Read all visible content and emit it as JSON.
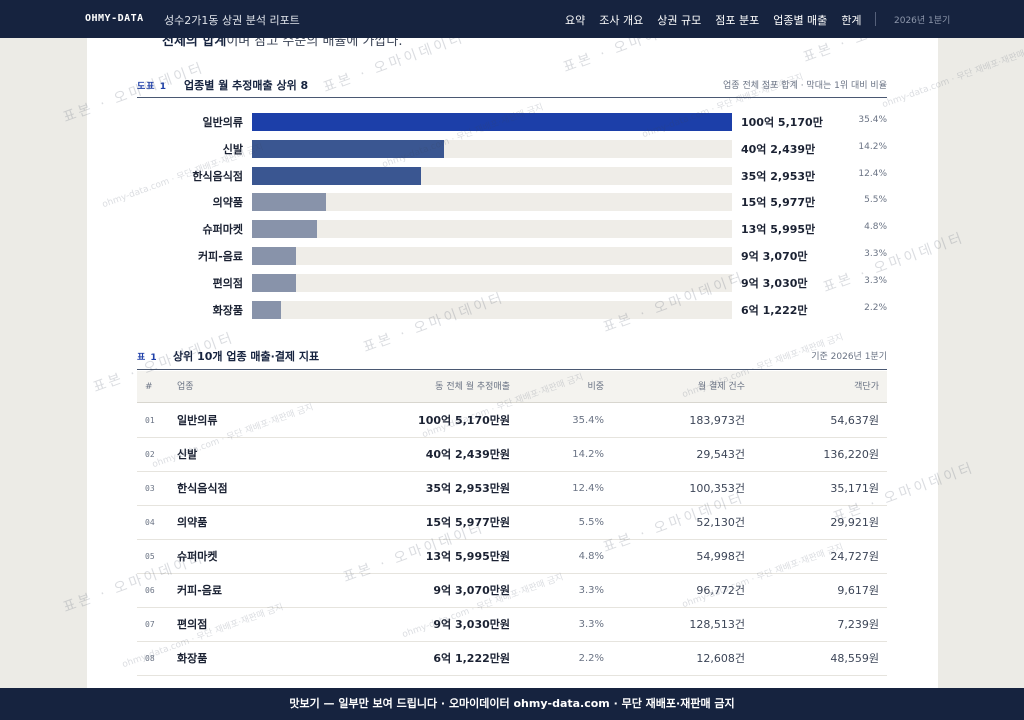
{
  "topbar": {
    "brand": "OHMY-DATA",
    "title": "성수2가1동 상권 분석 리포트",
    "nav": [
      "요약",
      "조사 개요",
      "상권 규모",
      "점포 분포",
      "업종별 매출",
      "한계"
    ],
    "period": "2026년 1분기"
  },
  "lead": {
    "bold": "전체의 합계",
    "rest": "이며 참고 수준의 배율에 가깝다."
  },
  "figure": {
    "tag": "도표 1",
    "title": "업종별 월 추정매출 상위 8",
    "note": "업종 전체 점포 합계 · 막대는 1위 대비 비율"
  },
  "chart_data": {
    "type": "bar",
    "categories": [
      "일반의류",
      "신발",
      "한식음식점",
      "의약품",
      "슈퍼마켓",
      "커피-음료",
      "편의점",
      "화장품"
    ],
    "values": [
      100.517,
      40.2439,
      35.2953,
      15.5977,
      13.5995,
      9.307,
      9.303,
      6.1222
    ],
    "value_labels": [
      "100억 5,170만",
      "40억 2,439만",
      "35억 2,953만",
      "15억 5,977만",
      "13억 5,995만",
      "9억 3,070만",
      "9억 3,030만",
      "6억 1,222만"
    ],
    "shares": [
      "35.4%",
      "14.2%",
      "12.4%",
      "5.5%",
      "4.8%",
      "3.3%",
      "3.3%",
      "2.2%"
    ],
    "colors": [
      "#1c3fa9",
      "#3a5691",
      "#3a5691",
      "#8893aa",
      "#8893aa",
      "#8893aa",
      "#8893aa",
      "#8893aa"
    ]
  },
  "table": {
    "tag": "표 1",
    "title": "상위 10개 업종 매출·결제 지표",
    "note": "기준 2026년 1분기",
    "columns": [
      "#",
      "업종",
      "동 전체 월 추정매출",
      "비중",
      "월 결제 건수",
      "객단가"
    ],
    "rows": [
      {
        "num": "01",
        "name": "일반의류",
        "sales": "100억 5,170만원",
        "share": "35.4%",
        "count": "183,973건",
        "avg": "54,637원"
      },
      {
        "num": "02",
        "name": "신발",
        "sales": "40억 2,439만원",
        "share": "14.2%",
        "count": "29,543건",
        "avg": "136,220원"
      },
      {
        "num": "03",
        "name": "한식음식점",
        "sales": "35억 2,953만원",
        "share": "12.4%",
        "count": "100,353건",
        "avg": "35,171원"
      },
      {
        "num": "04",
        "name": "의약품",
        "sales": "15억 5,977만원",
        "share": "5.5%",
        "count": "52,130건",
        "avg": "29,921원"
      },
      {
        "num": "05",
        "name": "슈퍼마켓",
        "sales": "13억 5,995만원",
        "share": "4.8%",
        "count": "54,998건",
        "avg": "24,727원"
      },
      {
        "num": "06",
        "name": "커피-음료",
        "sales": "9억 3,070만원",
        "share": "3.3%",
        "count": "96,772건",
        "avg": "9,617원"
      },
      {
        "num": "07",
        "name": "편의점",
        "sales": "9억 3,030만원",
        "share": "3.3%",
        "count": "128,513건",
        "avg": "7,239원"
      },
      {
        "num": "08",
        "name": "화장품",
        "sales": "6억 1,222만원",
        "share": "2.2%",
        "count": "12,608건",
        "avg": "48,559원"
      }
    ]
  },
  "watermark": {
    "big": "표본 · 오마이데이터",
    "small": "ohmy-data.com · 무단 재배포·재판매 금지"
  },
  "banner": "맛보기 — 일부만 보여 드립니다 · 오마이데이터 ohmy-data.com · 무단 재배포·재판매 금지"
}
